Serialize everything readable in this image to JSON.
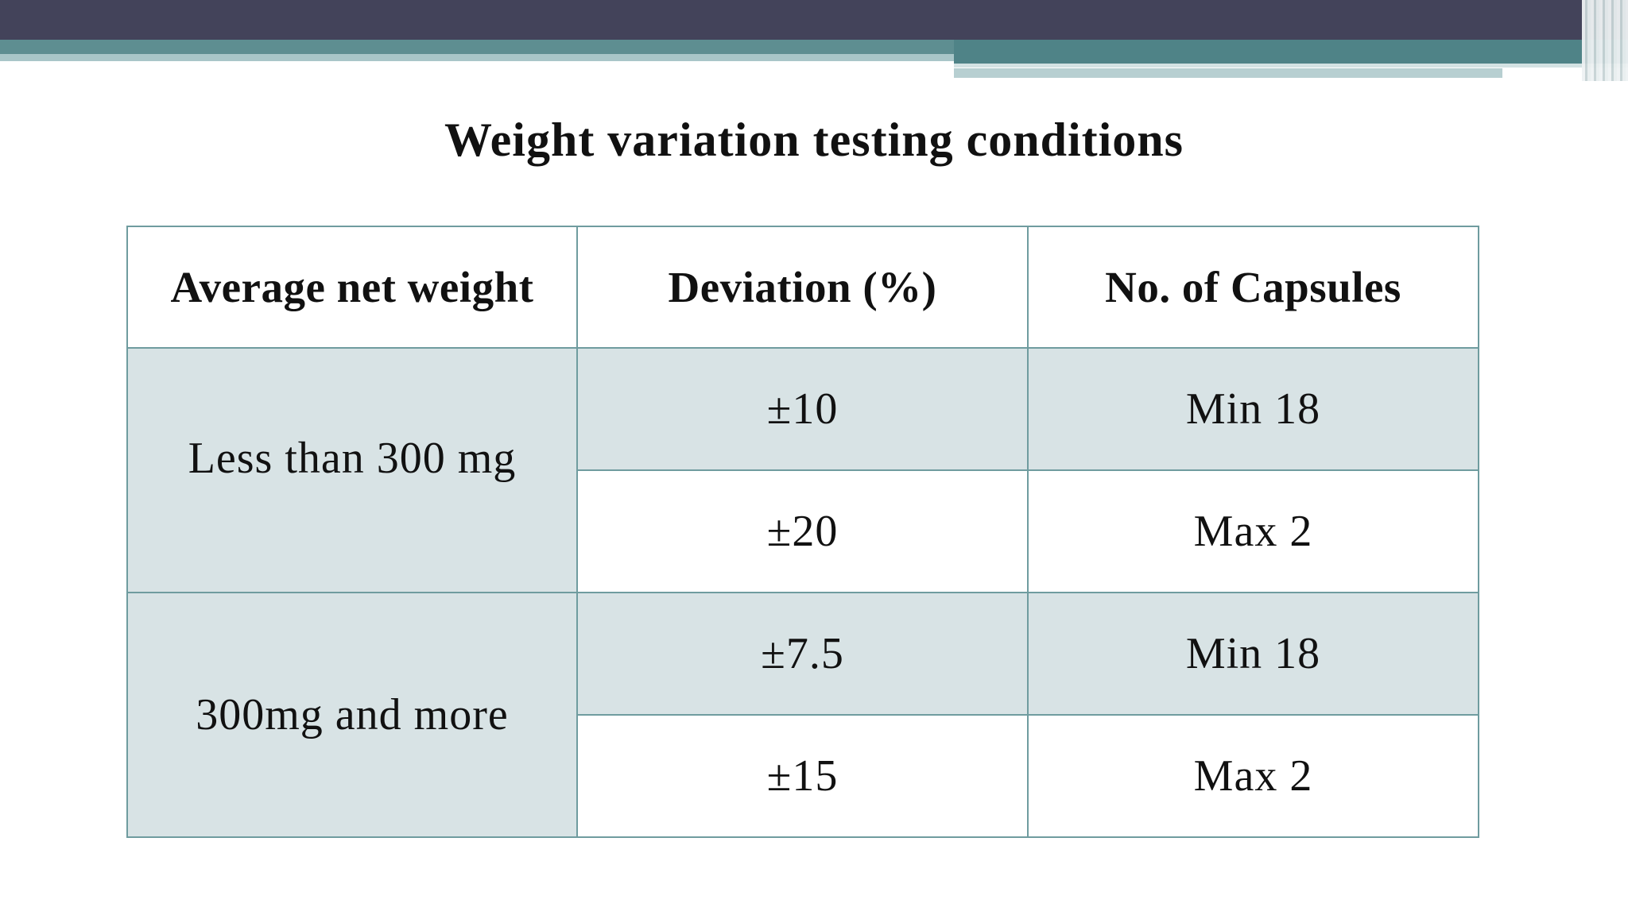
{
  "title": "Weight variation testing conditions",
  "table": {
    "headers": [
      "Average net weight",
      "Deviation (%)",
      "No. of Capsules"
    ],
    "groups": [
      {
        "weight": "Less than 300 mg",
        "rows": [
          {
            "deviation": "±10",
            "capsules": "Min 18"
          },
          {
            "deviation": "±20",
            "capsules": "Max 2"
          }
        ]
      },
      {
        "weight": "300mg and more",
        "rows": [
          {
            "deviation": "±7.5",
            "capsules": "Min 18"
          },
          {
            "deviation": "±15",
            "capsules": "Max 2"
          }
        ]
      }
    ]
  },
  "colors": {
    "header_bar": "#43435a",
    "accent_bar": "#5e8e91",
    "table_border": "#6f9c9f",
    "shaded_cell": "#d8e3e5"
  }
}
